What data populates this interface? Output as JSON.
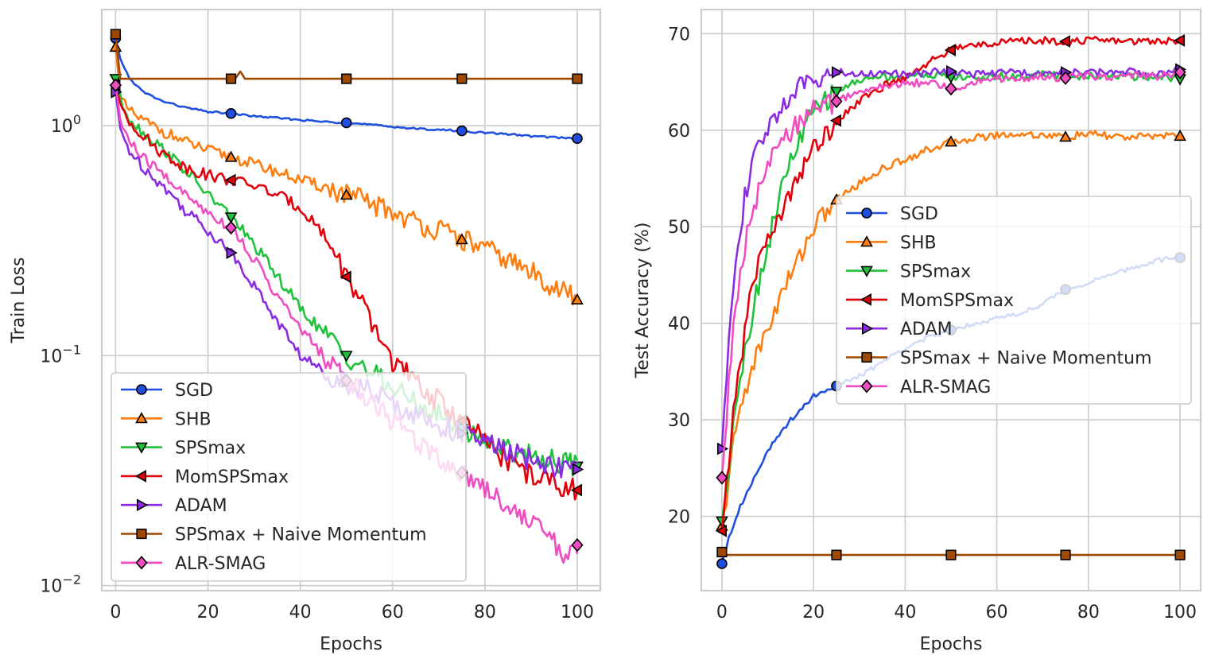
{
  "colors": {
    "SGD": "#1f4fe0",
    "SHB": "#ff7c0e",
    "SPSmax": "#1fc23a",
    "MomSPSmax": "#e3000b",
    "ADAM": "#8b2be2",
    "SPSmax + Naive Momentum": "#9f4800",
    "ALR-SMAG": "#f14cc1"
  },
  "chart_data": [
    {
      "type": "line",
      "yscale": "log",
      "xlabel": "Epochs",
      "ylabel": "Train Loss",
      "xlim": [
        -3,
        105
      ],
      "ylim": [
        0.0095,
        3.2
      ],
      "xticks": [
        0,
        20,
        40,
        60,
        80,
        100
      ],
      "xtick_labels": [
        "0",
        "20",
        "40",
        "60",
        "80",
        "100"
      ],
      "yticks": [
        0.01,
        0.1,
        1
      ],
      "ytick_base": "10",
      "ytick_exps": [
        "−2",
        "−1",
        "0"
      ],
      "legend": {
        "loc": "lower-left"
      },
      "series": [
        {
          "name": "SGD",
          "marker": "circle",
          "x": [
            0,
            1,
            3,
            6,
            10,
            15,
            20,
            25,
            30,
            35,
            40,
            45,
            50,
            55,
            60,
            65,
            70,
            75,
            80,
            85,
            90,
            95,
            100
          ],
          "values": [
            2.4,
            1.95,
            1.6,
            1.4,
            1.28,
            1.2,
            1.15,
            1.13,
            1.1,
            1.08,
            1.06,
            1.04,
            1.03,
            1.01,
            0.99,
            0.97,
            0.96,
            0.95,
            0.93,
            0.92,
            0.9,
            0.89,
            0.88
          ]
        },
        {
          "name": "SHB",
          "marker": "triangle-up",
          "x": [
            0,
            1,
            3,
            6,
            10,
            15,
            20,
            25,
            30,
            35,
            40,
            45,
            50,
            55,
            60,
            65,
            70,
            75,
            80,
            85,
            90,
            95,
            100
          ],
          "values": [
            2.2,
            1.3,
            1.15,
            1.05,
            0.95,
            0.85,
            0.78,
            0.73,
            0.68,
            0.63,
            0.58,
            0.54,
            0.5,
            0.46,
            0.42,
            0.38,
            0.35,
            0.32,
            0.29,
            0.26,
            0.23,
            0.2,
            0.175
          ]
        },
        {
          "name": "SPSmax",
          "marker": "triangle-down",
          "x": [
            0,
            1,
            3,
            6,
            10,
            15,
            20,
            25,
            30,
            35,
            40,
            45,
            50,
            55,
            60,
            65,
            70,
            75,
            80,
            85,
            90,
            95,
            100
          ],
          "values": [
            1.6,
            1.3,
            1.08,
            0.93,
            0.8,
            0.64,
            0.5,
            0.4,
            0.3,
            0.22,
            0.16,
            0.125,
            0.1,
            0.085,
            0.072,
            0.062,
            0.055,
            0.048,
            0.043,
            0.039,
            0.037,
            0.035,
            0.033
          ]
        },
        {
          "name": "MomSPSmax",
          "marker": "triangle-left",
          "x": [
            0,
            1,
            3,
            6,
            10,
            15,
            20,
            25,
            30,
            35,
            40,
            45,
            50,
            55,
            60,
            65,
            70,
            75,
            80,
            85,
            90,
            95,
            100
          ],
          "values": [
            1.5,
            1.25,
            1.05,
            0.9,
            0.76,
            0.66,
            0.61,
            0.58,
            0.55,
            0.5,
            0.44,
            0.34,
            0.22,
            0.14,
            0.095,
            0.075,
            0.063,
            0.052,
            0.042,
            0.035,
            0.03,
            0.028,
            0.026
          ]
        },
        {
          "name": "ADAM",
          "marker": "triangle-right",
          "x": [
            0,
            1,
            3,
            6,
            10,
            15,
            20,
            25,
            30,
            35,
            40,
            45,
            50,
            55,
            60,
            65,
            70,
            75,
            80,
            85,
            90,
            95,
            100
          ],
          "values": [
            1.4,
            0.95,
            0.78,
            0.66,
            0.55,
            0.43,
            0.35,
            0.28,
            0.2,
            0.14,
            0.1,
            0.085,
            0.077,
            0.07,
            0.062,
            0.055,
            0.05,
            0.046,
            0.042,
            0.038,
            0.035,
            0.033,
            0.032
          ]
        },
        {
          "name": "SPSmax + Naive Momentum",
          "marker": "square",
          "x": [
            0,
            0.5,
            1,
            3,
            6,
            10,
            15,
            20,
            25,
            26,
            27,
            28,
            30,
            35,
            40,
            45,
            50,
            55,
            60,
            65,
            70,
            75,
            80,
            85,
            90,
            95,
            100
          ],
          "values": [
            2.5,
            2.0,
            1.6,
            1.6,
            1.6,
            1.6,
            1.6,
            1.6,
            1.6,
            1.61,
            1.72,
            1.6,
            1.6,
            1.6,
            1.6,
            1.6,
            1.6,
            1.6,
            1.6,
            1.6,
            1.6,
            1.6,
            1.6,
            1.6,
            1.6,
            1.6,
            1.6
          ]
        },
        {
          "name": "ALR-SMAG",
          "marker": "diamond",
          "x": [
            0,
            1,
            3,
            6,
            10,
            15,
            20,
            25,
            30,
            35,
            40,
            45,
            50,
            55,
            60,
            65,
            70,
            75,
            80,
            85,
            90,
            95,
            97,
            100
          ],
          "values": [
            1.5,
            1.05,
            0.85,
            0.72,
            0.62,
            0.5,
            0.42,
            0.36,
            0.26,
            0.18,
            0.13,
            0.1,
            0.078,
            0.065,
            0.052,
            0.043,
            0.036,
            0.031,
            0.027,
            0.022,
            0.019,
            0.016,
            0.0125,
            0.015
          ]
        }
      ]
    },
    {
      "type": "line",
      "yscale": "linear",
      "xlabel": "Epochs",
      "ylabel": "Test Accuracy  (%)",
      "xlim": [
        -4.5,
        104.5
      ],
      "ylim": [
        12.3,
        72.5
      ],
      "xticks": [
        0,
        20,
        40,
        60,
        80,
        100
      ],
      "xtick_labels": [
        "0",
        "20",
        "40",
        "60",
        "80",
        "100"
      ],
      "yticks": [
        20,
        30,
        40,
        50,
        60,
        70
      ],
      "ytick_labels": [
        "20",
        "30",
        "40",
        "50",
        "60",
        "70"
      ],
      "legend": {
        "loc": "center-right"
      },
      "series": [
        {
          "name": "SGD",
          "marker": "circle",
          "x": [
            0,
            1,
            2,
            4,
            6,
            8,
            10,
            12,
            15,
            18,
            20,
            25,
            30,
            35,
            40,
            45,
            50,
            55,
            60,
            65,
            70,
            75,
            80,
            85,
            90,
            95,
            100
          ],
          "values": [
            15.1,
            17,
            18.5,
            21,
            23,
            25,
            26.8,
            28,
            30,
            31.5,
            32.5,
            33.5,
            34.5,
            36,
            37.5,
            38.5,
            39.3,
            40,
            40.5,
            41,
            42,
            43.5,
            44.2,
            45,
            45.8,
            46.5,
            46.8
          ]
        },
        {
          "name": "SHB",
          "marker": "triangle-up",
          "x": [
            0,
            1,
            2,
            3,
            5,
            7,
            10,
            13,
            16,
            20,
            25,
            30,
            35,
            40,
            45,
            50,
            55,
            60,
            65,
            70,
            75,
            80,
            85,
            90,
            95,
            100
          ],
          "values": [
            19,
            22,
            26,
            29,
            33,
            36,
            39.5,
            43,
            46,
            50,
            52.8,
            54.5,
            56,
            57,
            58,
            58.8,
            59.2,
            59.5,
            59.6,
            59.5,
            59.3,
            59.6,
            59.4,
            59.2,
            59.5,
            59.4
          ]
        },
        {
          "name": "SPSmax",
          "marker": "triangle-down",
          "x": [
            0,
            1,
            2,
            3,
            5,
            7,
            10,
            13,
            16,
            20,
            25,
            30,
            35,
            40,
            45,
            50,
            55,
            60,
            65,
            70,
            75,
            80,
            85,
            90,
            95,
            100
          ],
          "values": [
            19.5,
            23,
            28,
            32,
            37,
            42,
            48,
            54,
            58,
            62,
            64,
            65.2,
            65.6,
            65.5,
            65.8,
            65.5,
            65.4,
            65.6,
            65.5,
            65.8,
            65.5,
            65.6,
            65.7,
            65.5,
            65.6,
            65.3
          ]
        },
        {
          "name": "MomSPSmax",
          "marker": "triangle-left",
          "x": [
            0,
            1,
            2,
            3,
            5,
            7,
            10,
            13,
            16,
            20,
            25,
            30,
            35,
            40,
            45,
            50,
            55,
            60,
            65,
            70,
            75,
            80,
            85,
            90,
            95,
            100
          ],
          "values": [
            18.5,
            23,
            28,
            33,
            39,
            45,
            49,
            51,
            55,
            58,
            61,
            63,
            64.5,
            65.5,
            67,
            68.3,
            68.8,
            69.1,
            69.2,
            69.3,
            69.2,
            69.3,
            69.3,
            69.2,
            69.3,
            69.3
          ]
        },
        {
          "name": "ADAM",
          "marker": "triangle-right",
          "x": [
            0,
            1,
            2,
            3,
            5,
            7,
            9,
            11,
            13,
            16,
            20,
            25,
            30,
            35,
            40,
            45,
            50,
            55,
            60,
            65,
            70,
            75,
            80,
            85,
            90,
            95,
            100
          ],
          "values": [
            27,
            35,
            42,
            47,
            53,
            57,
            59,
            61,
            62.5,
            64,
            65.5,
            66,
            65.8,
            66,
            65.7,
            66,
            66.1,
            65.8,
            65.9,
            66,
            65.7,
            66,
            65.9,
            66,
            66.1,
            65.9,
            66.3
          ]
        },
        {
          "name": "SPSmax + Naive Momentum",
          "marker": "square",
          "x": [
            0,
            0.5,
            1,
            5,
            10,
            20,
            25,
            30,
            40,
            50,
            60,
            70,
            75,
            80,
            90,
            100
          ],
          "values": [
            16.3,
            16,
            16,
            16,
            16,
            16,
            16,
            16,
            16,
            16,
            16,
            16,
            16,
            16,
            16,
            16
          ]
        },
        {
          "name": "ALR-SMAG",
          "marker": "diamond",
          "x": [
            0,
            1,
            2,
            3,
            5,
            7,
            9,
            11,
            13,
            16,
            20,
            25,
            30,
            35,
            40,
            45,
            50,
            55,
            60,
            65,
            70,
            75,
            80,
            85,
            90,
            95,
            100
          ],
          "values": [
            24,
            30,
            37,
            42,
            48,
            52,
            55,
            57,
            58.5,
            60.5,
            62,
            63,
            64,
            64.5,
            64.8,
            65,
            64.3,
            65,
            65.4,
            65.3,
            65.5,
            65.4,
            65.6,
            65.5,
            65.7,
            65.6,
            66
          ]
        }
      ]
    }
  ]
}
